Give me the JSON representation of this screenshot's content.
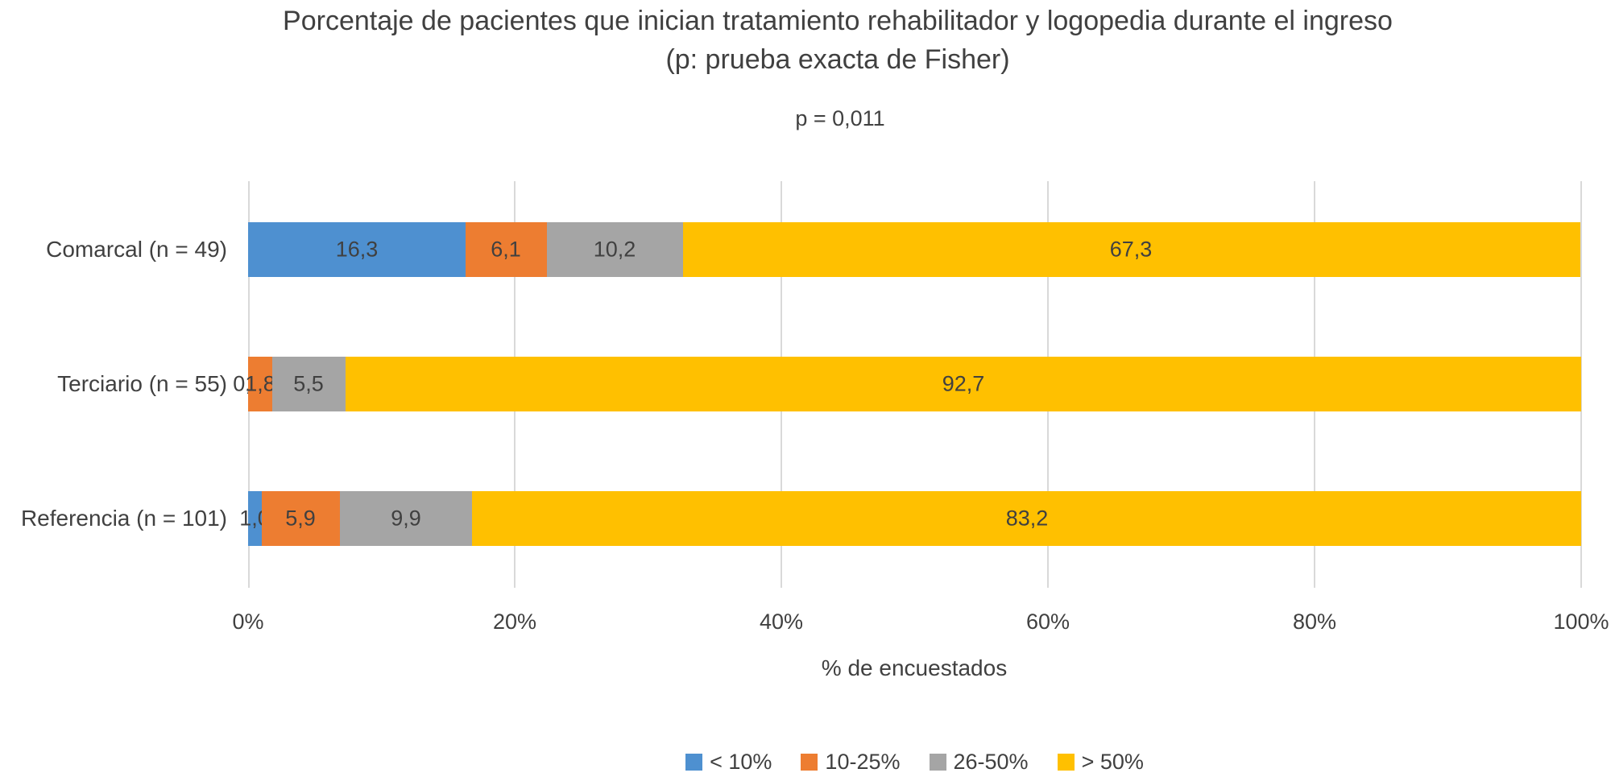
{
  "chart": {
    "title_line1": "Porcentaje de pacientes que inician tratamiento rehabilitador y logopedia durante el ingreso",
    "title_line2": "(p: prueba exacta de Fisher)"
  },
  "chart_data": {
    "type": "bar",
    "orientation": "horizontal",
    "stacked": true,
    "title": "Porcentaje de pacientes que inician tratamiento rehabilitador y logopedia durante el ingreso (p: prueba exacta de Fisher)",
    "annotation": "p = 0,011",
    "categories": [
      "Comarcal (n = 49)",
      "Terciario (n = 55)",
      "Referencia (n = 101)"
    ],
    "series": [
      {
        "name": "< 10%",
        "color": "#4E90D0",
        "values": [
          16.3,
          0.0,
          1.0
        ],
        "labels": [
          "16,3",
          "0,0",
          "1,0"
        ]
      },
      {
        "name": "10-25%",
        "color": "#ED7D31",
        "values": [
          6.1,
          1.8,
          5.9
        ],
        "labels": [
          "6,1",
          "1,8",
          "5,9"
        ]
      },
      {
        "name": "26-50%",
        "color": "#A5A5A5",
        "values": [
          10.2,
          5.5,
          9.9
        ],
        "labels": [
          "10,2",
          "5,5",
          "9,9"
        ]
      },
      {
        "name": "> 50%",
        "color": "#FFC000",
        "values": [
          67.3,
          92.7,
          83.2
        ],
        "labels": [
          "67,3",
          "92,7",
          "83,2"
        ]
      }
    ],
    "x_ticks": [
      "0%",
      "20%",
      "40%",
      "60%",
      "80%",
      "100%"
    ],
    "xlim": [
      0,
      100
    ],
    "xlabel": "% de encuestados",
    "grid": true,
    "legend_position": "bottom",
    "colors": {
      "text": "#404040",
      "gridline": "#D9D9D9",
      "background": "#FFFFFF"
    }
  }
}
